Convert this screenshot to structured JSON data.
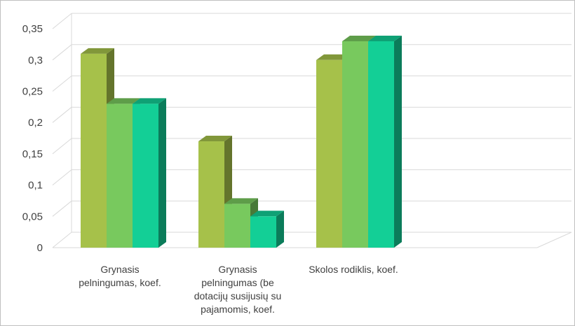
{
  "chart_data": {
    "type": "bar",
    "title": "",
    "xlabel": "",
    "ylabel": "",
    "ylim": [
      0,
      0.35
    ],
    "yticks": [
      "0",
      "0,05",
      "0,1",
      "0,15",
      "0,2",
      "0,25",
      "0,3",
      "0,35"
    ],
    "categories": [
      [
        "Grynasis",
        "pelningumas, koef."
      ],
      [
        "Grynasis",
        "pelningumas (be",
        "dotacijų susijusių su",
        "pajamomis, koef."
      ],
      [
        "Skolos rodiklis, koef."
      ]
    ],
    "series": [
      {
        "values": [
          0.31,
          0.17,
          0.3
        ],
        "color": "#a6c14a"
      },
      {
        "values": [
          0.23,
          0.07,
          0.33
        ],
        "color": "#78c95e"
      },
      {
        "values": [
          0.23,
          0.05,
          0.33
        ],
        "color": "#13cf96"
      }
    ],
    "grid": true,
    "legend": "none",
    "style": "3d-clustered-column"
  }
}
